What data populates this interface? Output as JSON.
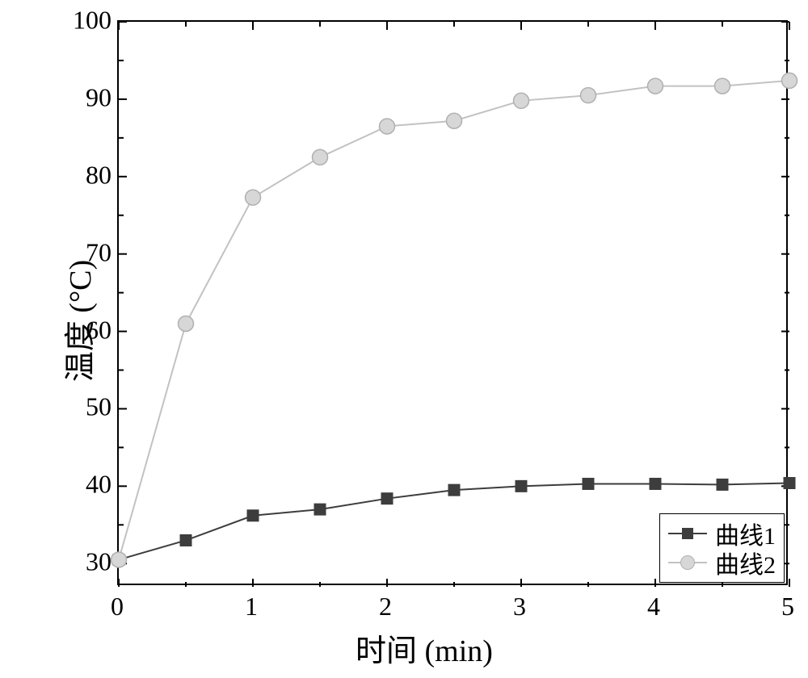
{
  "chart": {
    "type": "line",
    "xlabel": "时间 (min)",
    "ylabel": "温度 (°C)",
    "label_fontsize": 38,
    "tick_fontsize": 32,
    "xlim": [
      0,
      5
    ],
    "ylim": [
      27,
      100
    ],
    "xtick_step": 1,
    "ytick_step": 10,
    "ytick_start": 30,
    "background_color": "#ffffff",
    "border_color": "#000000",
    "tick_length_major": 10,
    "tick_length_minor": 6,
    "tick_direction": "in",
    "minor_ticks_per_major": 1,
    "series": [
      {
        "name": "曲线1",
        "label": "曲线1",
        "x": [
          0,
          0.5,
          1.0,
          1.5,
          2.0,
          2.5,
          3.0,
          3.5,
          4.0,
          4.5,
          5.0
        ],
        "y": [
          30.5,
          33.0,
          36.2,
          37.0,
          38.4,
          39.5,
          40.0,
          40.3,
          40.3,
          40.2,
          40.4
        ],
        "line_color": "#3d3d3d",
        "line_width": 2,
        "marker": "square",
        "marker_size": 14,
        "marker_fill": "#3d3d3d",
        "marker_border": "#3d3d3d"
      },
      {
        "name": "曲线2",
        "label": "曲线2",
        "x": [
          0,
          0.5,
          1.0,
          1.5,
          2.0,
          2.5,
          3.0,
          3.5,
          4.0,
          4.5,
          5.0
        ],
        "y": [
          30.5,
          61.0,
          77.3,
          82.5,
          86.5,
          87.2,
          89.8,
          90.5,
          91.7,
          91.7,
          92.4
        ],
        "line_color": "#c2c2c2",
        "line_width": 2,
        "marker": "circle",
        "marker_size": 19,
        "marker_fill": "#d7d7d7",
        "marker_border": "#b0b0b0"
      }
    ],
    "legend": {
      "position": "bottom-right",
      "border_color": "#000000",
      "fontsize": 30
    }
  }
}
